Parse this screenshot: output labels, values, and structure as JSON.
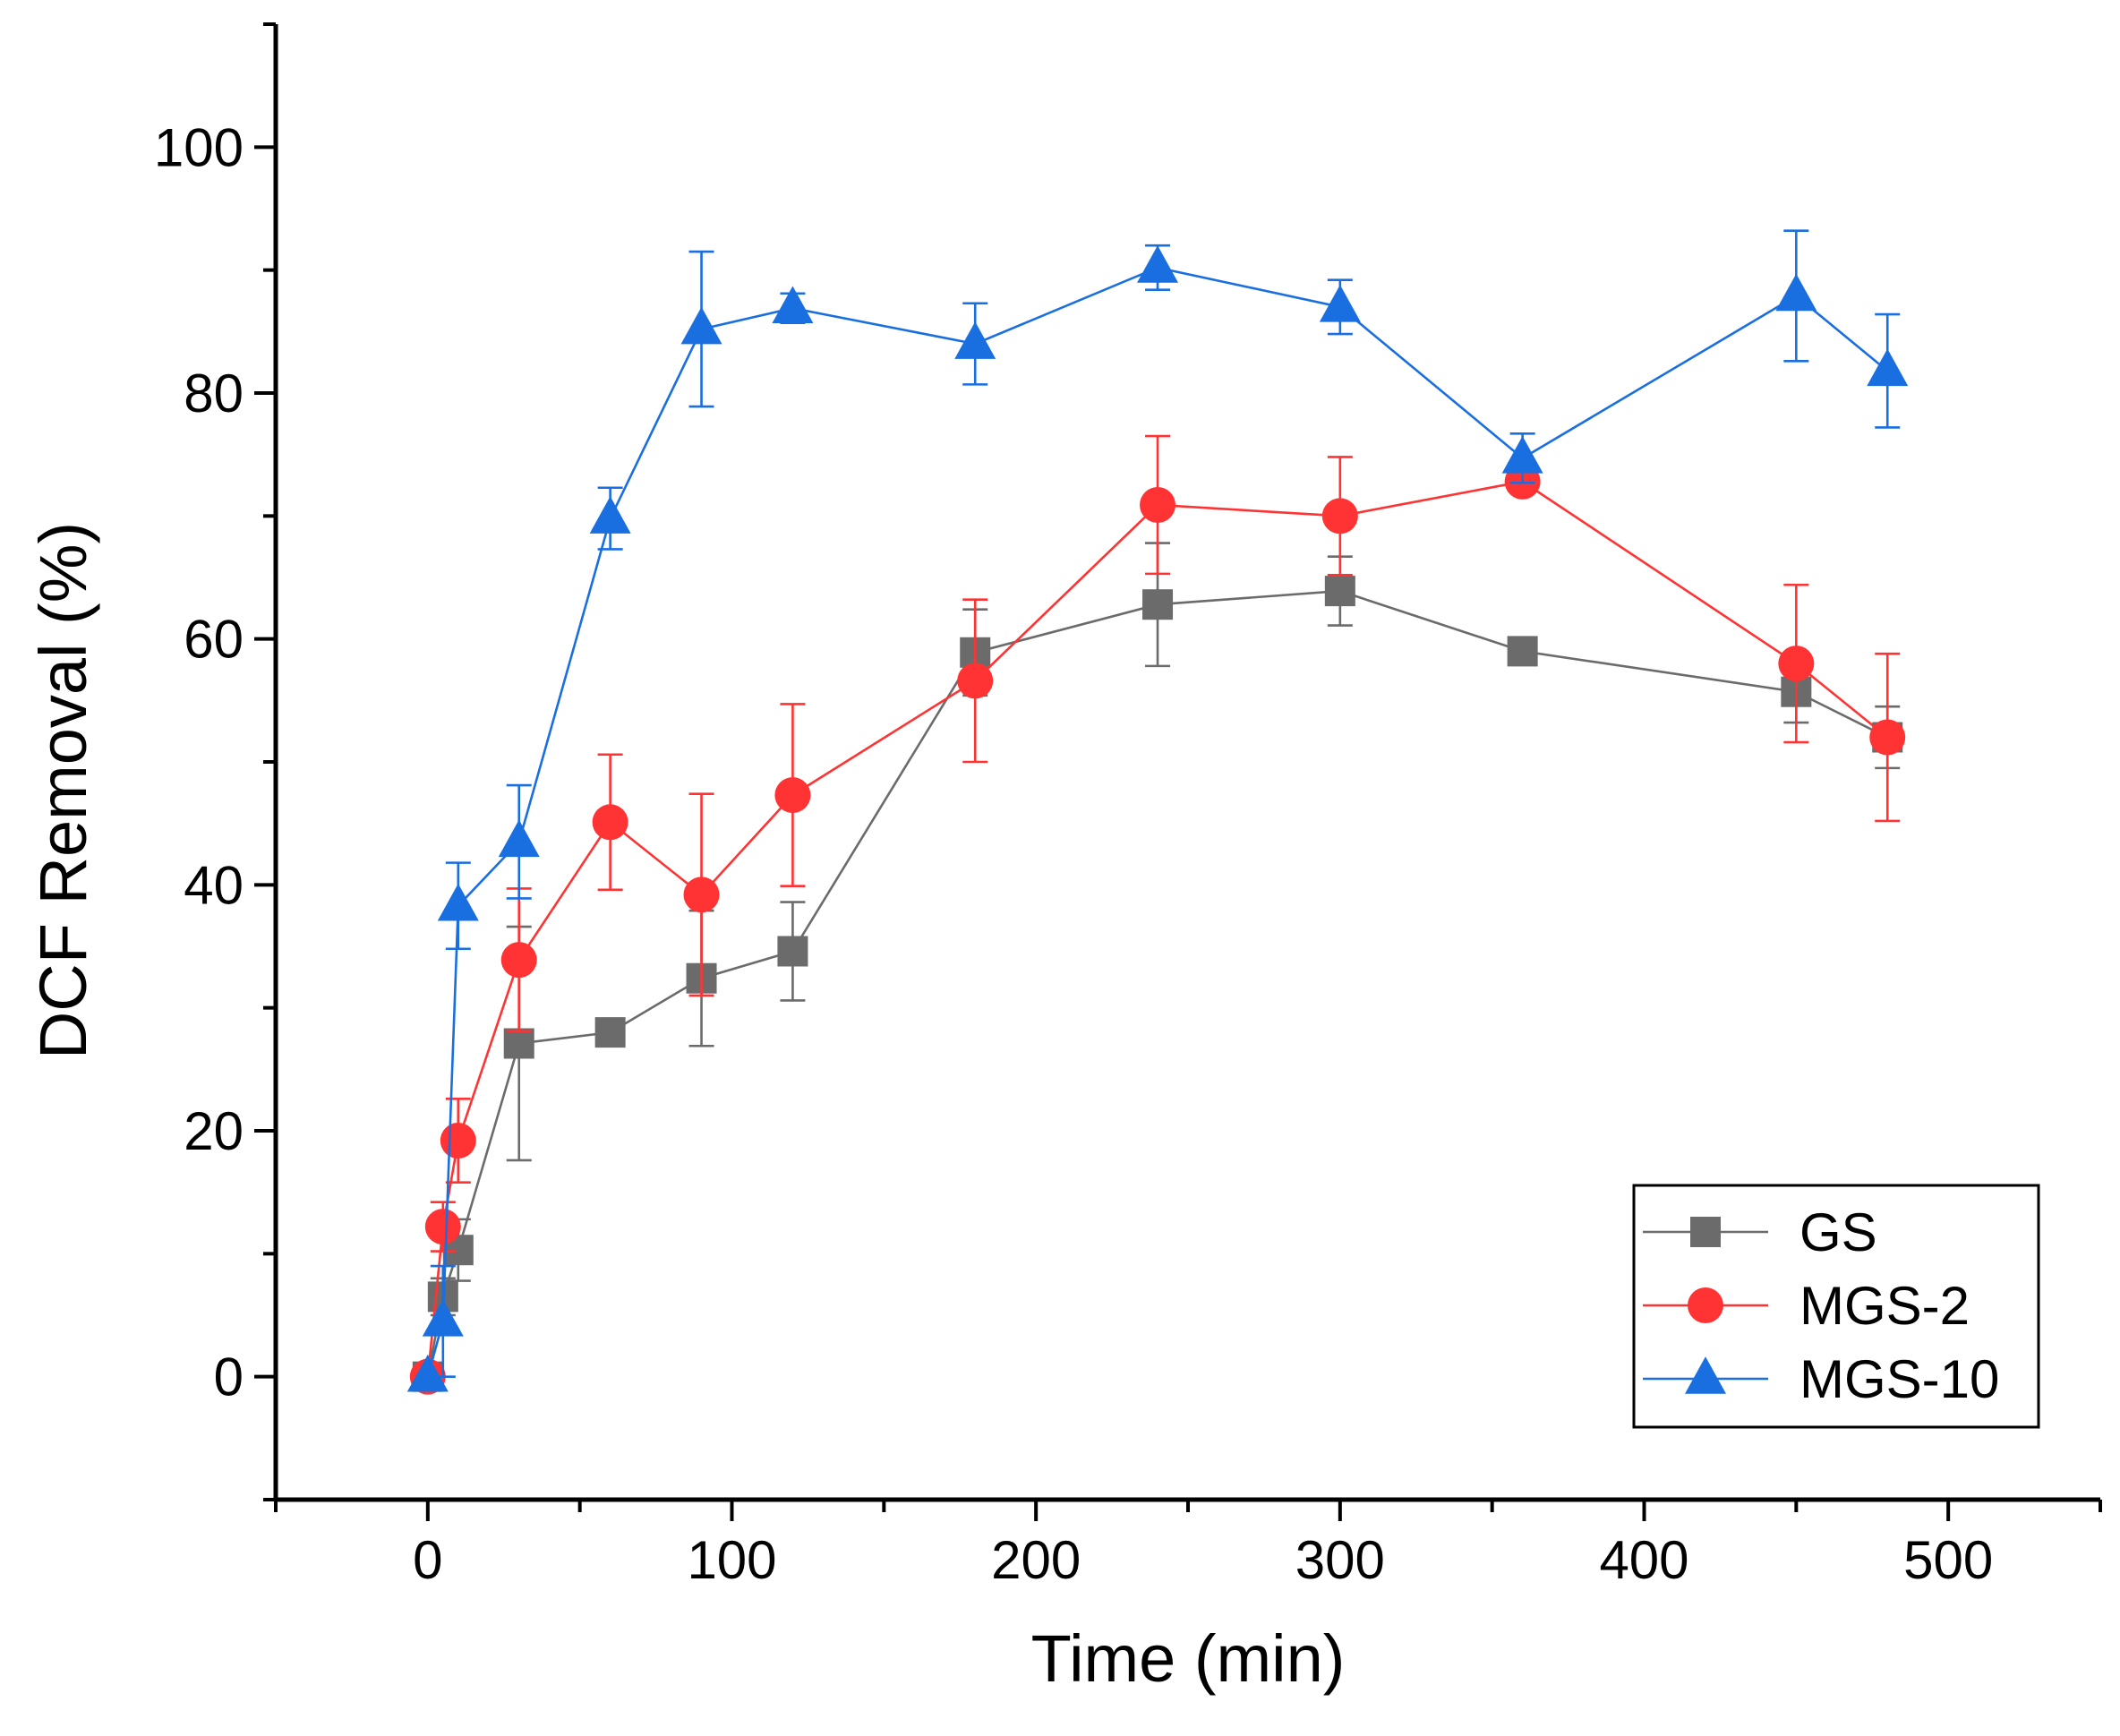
{
  "chart_data": {
    "type": "line",
    "title": "",
    "xlabel": "Time (min)",
    "ylabel": "DCF Removal (%)",
    "xlim": [
      -50,
      550
    ],
    "ylim": [
      -10,
      110
    ],
    "xticks": [
      0,
      100,
      200,
      300,
      400,
      500
    ],
    "yticks": [
      0,
      20,
      40,
      60,
      80,
      100
    ],
    "grid": false,
    "legend_position": "bottom-right",
    "series": [
      {
        "name": "GS",
        "color": "#6b6b6b",
        "marker": "square",
        "x": [
          0,
          5,
          10,
          30,
          60,
          90,
          120,
          180,
          240,
          300,
          360,
          450,
          480
        ],
        "y": [
          0,
          6.5,
          10.3,
          27.1,
          28.0,
          32.4,
          34.6,
          58.9,
          62.8,
          63.9,
          59.0,
          55.7,
          52.0
        ],
        "err": [
          0,
          1.5,
          2.5,
          9.5,
          0,
          5.5,
          4.0,
          3.5,
          5.0,
          2.8,
          0,
          2.5,
          2.5
        ]
      },
      {
        "name": "MGS-2",
        "color": "#ff3333",
        "marker": "circle",
        "x": [
          0,
          5,
          10,
          30,
          60,
          90,
          120,
          180,
          240,
          300,
          360,
          450,
          480
        ],
        "y": [
          0,
          12.2,
          19.2,
          33.9,
          45.1,
          39.2,
          47.3,
          56.6,
          70.9,
          70.0,
          72.8,
          58.0,
          52.0
        ],
        "err": [
          0,
          2.0,
          3.4,
          5.8,
          5.5,
          8.2,
          7.4,
          6.6,
          5.6,
          4.8,
          0.8,
          6.4,
          6.8
        ]
      },
      {
        "name": "MGS-10",
        "color": "#1a6fe0",
        "marker": "triangle",
        "x": [
          0,
          5,
          10,
          30,
          60,
          90,
          120,
          180,
          240,
          300,
          360,
          450,
          480
        ],
        "y": [
          0,
          4.5,
          38.3,
          43.5,
          69.8,
          85.2,
          86.9,
          84.0,
          90.2,
          87.0,
          74.7,
          87.9,
          81.8
        ],
        "err": [
          0,
          4.5,
          3.5,
          4.6,
          2.5,
          6.3,
          1.2,
          3.3,
          1.8,
          2.2,
          2.0,
          5.3,
          4.6
        ]
      }
    ]
  }
}
